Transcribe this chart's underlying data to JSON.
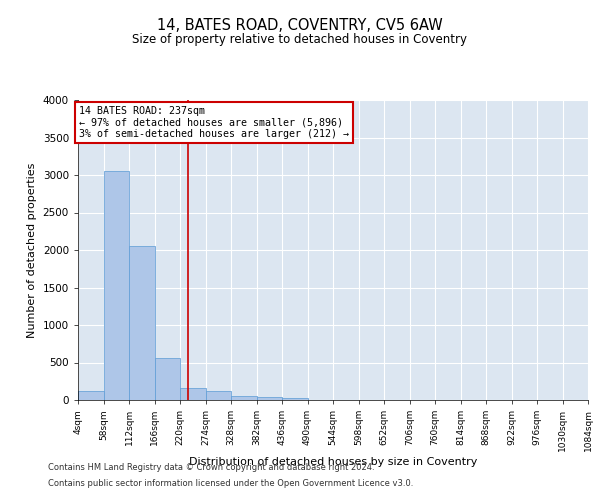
{
  "title": "14, BATES ROAD, COVENTRY, CV5 6AW",
  "subtitle": "Size of property relative to detached houses in Coventry",
  "xlabel": "Distribution of detached houses by size in Coventry",
  "ylabel": "Number of detached properties",
  "footer_line1": "Contains HM Land Registry data © Crown copyright and database right 2024.",
  "footer_line2": "Contains public sector information licensed under the Open Government Licence v3.0.",
  "annotation_line1": "14 BATES ROAD: 237sqm",
  "annotation_line2": "← 97% of detached houses are smaller (5,896)",
  "annotation_line3": "3% of semi-detached houses are larger (212) →",
  "property_size": 237,
  "bin_edges": [
    4,
    58,
    112,
    166,
    220,
    274,
    328,
    382,
    436,
    490,
    544,
    598,
    652,
    706,
    760,
    814,
    868,
    922,
    976,
    1030,
    1084
  ],
  "bar_heights": [
    120,
    3050,
    2050,
    560,
    160,
    120,
    60,
    40,
    30,
    0,
    0,
    0,
    0,
    0,
    0,
    0,
    0,
    0,
    0,
    0
  ],
  "bar_color": "#aec6e8",
  "bar_edge_color": "#5b9bd5",
  "line_color": "#cc0000",
  "annotation_box_color": "#cc0000",
  "background_color": "#dce6f1",
  "ylim": [
    0,
    4000
  ],
  "yticks": [
    0,
    500,
    1000,
    1500,
    2000,
    2500,
    3000,
    3500,
    4000
  ]
}
